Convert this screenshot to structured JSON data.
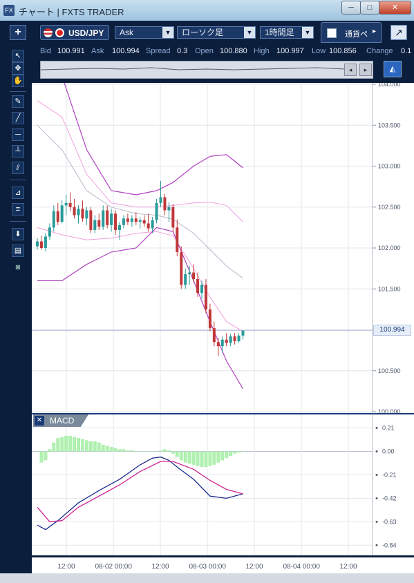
{
  "window": {
    "icon_text": "FX",
    "title": "チャート | FXTS TRADER",
    "controls": [
      "─",
      "□",
      "✕"
    ]
  },
  "toolbar": {
    "add_symbol": "+",
    "pair": "USD/JPY",
    "price_type": "Ask",
    "chart_type": "ローソク足",
    "timeframe": "1時間足",
    "currency_tab": "通貨ペ",
    "popout": "↗"
  },
  "quote": {
    "bid_label": "Bid",
    "bid": "100.991",
    "ask_label": "Ask",
    "ask": "100.994",
    "spread_label": "Spread",
    "spread": "0.3",
    "open_label": "Open",
    "open": "100.880",
    "high_label": "High",
    "high": "100.997",
    "low_label": "Low",
    "low": "100.856",
    "change_label": "Change",
    "change": "0.1"
  },
  "left_tools": [
    {
      "name": "cursor-arrow-icon",
      "glyph": "↖"
    },
    {
      "name": "crosshair-cursor-icon",
      "glyph": "✥"
    },
    {
      "name": "hand-pan-icon",
      "glyph": "✋"
    },
    {
      "name": "pencil-draw-icon",
      "glyph": "✎"
    },
    {
      "name": "trend-line-icon",
      "glyph": "╱"
    },
    {
      "name": "horizontal-line-icon",
      "glyph": "─"
    },
    {
      "name": "vertical-line-icon",
      "glyph": "┴"
    },
    {
      "name": "parallel-channel-icon",
      "glyph": "⫽"
    },
    {
      "name": "fan-tool-icon",
      "glyph": "⊿"
    },
    {
      "name": "fibonacci-icon",
      "glyph": "≡"
    },
    {
      "name": "download-icon",
      "glyph": "⬇"
    },
    {
      "name": "data-table-icon",
      "glyph": "▤"
    },
    {
      "name": "screenshot-camera-icon",
      "glyph": "◙"
    }
  ],
  "current_price_tag": "100.994",
  "macd_title": "MACD",
  "colors": {
    "bull_candle": "#2a9a9a",
    "bear_candle": "#c0383a",
    "bollinger_outer": "#b040c0",
    "bollinger_inner": "#f0a0e0",
    "moving_average": "#b8b8c8",
    "macd_line": "#1a2a8a",
    "signal_line": "#d02090",
    "histogram": "#b0f0b0"
  },
  "chart_data": [
    {
      "type": "candlestick",
      "title": "USD/JPY 1時間足",
      "y_ticks": [
        "104.000",
        "103.500",
        "103.000",
        "102.500",
        "102.000",
        "101.500",
        "101.000",
        "100.500",
        "100.000"
      ],
      "ylim": [
        100.0,
        104.0
      ],
      "x_ticks": [
        "12:00",
        "08-02 00:00",
        "12:00",
        "08-03 00:00",
        "12:00",
        "08-04 00:00",
        "12:00"
      ],
      "grid": true,
      "overlays": [
        "bollinger_upper",
        "bollinger_mid_band",
        "moving_average",
        "bollinger_lower"
      ],
      "candles": [
        {
          "o": 102.02,
          "h": 102.12,
          "l": 101.98,
          "c": 102.08
        },
        {
          "o": 102.08,
          "h": 102.15,
          "l": 101.98,
          "c": 102.0
        },
        {
          "o": 102.0,
          "h": 102.18,
          "l": 101.96,
          "c": 102.14
        },
        {
          "o": 102.14,
          "h": 102.3,
          "l": 102.1,
          "c": 102.25
        },
        {
          "o": 102.25,
          "h": 102.52,
          "l": 102.2,
          "c": 102.45
        },
        {
          "o": 102.45,
          "h": 102.55,
          "l": 102.28,
          "c": 102.32
        },
        {
          "o": 102.32,
          "h": 102.58,
          "l": 102.3,
          "c": 102.52
        },
        {
          "o": 102.52,
          "h": 102.65,
          "l": 102.4,
          "c": 102.55
        },
        {
          "o": 102.55,
          "h": 102.68,
          "l": 102.45,
          "c": 102.5
        },
        {
          "o": 102.5,
          "h": 102.6,
          "l": 102.36,
          "c": 102.4
        },
        {
          "o": 102.4,
          "h": 102.52,
          "l": 102.3,
          "c": 102.48
        },
        {
          "o": 102.48,
          "h": 102.58,
          "l": 102.32,
          "c": 102.36
        },
        {
          "o": 102.36,
          "h": 102.5,
          "l": 102.28,
          "c": 102.46
        },
        {
          "o": 102.46,
          "h": 102.5,
          "l": 102.18,
          "c": 102.22
        },
        {
          "o": 102.22,
          "h": 102.4,
          "l": 102.18,
          "c": 102.34
        },
        {
          "o": 102.34,
          "h": 102.42,
          "l": 102.22,
          "c": 102.26
        },
        {
          "o": 102.26,
          "h": 102.52,
          "l": 102.22,
          "c": 102.46
        },
        {
          "o": 102.46,
          "h": 102.52,
          "l": 102.24,
          "c": 102.28
        },
        {
          "o": 102.28,
          "h": 102.48,
          "l": 102.2,
          "c": 102.42
        },
        {
          "o": 102.42,
          "h": 102.46,
          "l": 102.16,
          "c": 102.22
        },
        {
          "o": 102.22,
          "h": 102.32,
          "l": 102.1,
          "c": 102.28
        },
        {
          "o": 102.28,
          "h": 102.4,
          "l": 102.24,
          "c": 102.36
        },
        {
          "o": 102.36,
          "h": 102.42,
          "l": 102.28,
          "c": 102.32
        },
        {
          "o": 102.32,
          "h": 102.4,
          "l": 102.26,
          "c": 102.36
        },
        {
          "o": 102.36,
          "h": 102.44,
          "l": 102.28,
          "c": 102.32
        },
        {
          "o": 102.32,
          "h": 102.38,
          "l": 102.24,
          "c": 102.34
        },
        {
          "o": 102.34,
          "h": 102.4,
          "l": 102.26,
          "c": 102.3
        },
        {
          "o": 102.3,
          "h": 102.42,
          "l": 102.2,
          "c": 102.24
        },
        {
          "o": 102.24,
          "h": 102.38,
          "l": 102.18,
          "c": 102.34
        },
        {
          "o": 102.34,
          "h": 102.6,
          "l": 102.3,
          "c": 102.55
        },
        {
          "o": 102.55,
          "h": 102.82,
          "l": 102.5,
          "c": 102.62
        },
        {
          "o": 102.62,
          "h": 102.66,
          "l": 102.4,
          "c": 102.46
        },
        {
          "o": 102.46,
          "h": 102.56,
          "l": 102.32,
          "c": 102.5
        },
        {
          "o": 102.5,
          "h": 102.54,
          "l": 102.2,
          "c": 102.25
        },
        {
          "o": 102.25,
          "h": 102.35,
          "l": 101.9,
          "c": 101.95
        },
        {
          "o": 101.95,
          "h": 102.02,
          "l": 101.5,
          "c": 101.55
        },
        {
          "o": 101.55,
          "h": 101.75,
          "l": 101.5,
          "c": 101.68
        },
        {
          "o": 101.68,
          "h": 101.78,
          "l": 101.55,
          "c": 101.7
        },
        {
          "o": 101.7,
          "h": 101.8,
          "l": 101.58,
          "c": 101.62
        },
        {
          "o": 101.62,
          "h": 101.7,
          "l": 101.4,
          "c": 101.45
        },
        {
          "o": 101.45,
          "h": 101.6,
          "l": 101.38,
          "c": 101.55
        },
        {
          "o": 101.55,
          "h": 101.62,
          "l": 101.2,
          "c": 101.25
        },
        {
          "o": 101.25,
          "h": 101.32,
          "l": 100.98,
          "c": 101.02
        },
        {
          "o": 101.02,
          "h": 101.1,
          "l": 100.8,
          "c": 100.85
        },
        {
          "o": 100.85,
          "h": 100.9,
          "l": 100.68,
          "c": 100.8
        },
        {
          "o": 100.8,
          "h": 100.92,
          "l": 100.72,
          "c": 100.88
        },
        {
          "o": 100.88,
          "h": 100.96,
          "l": 100.8,
          "c": 100.84
        },
        {
          "o": 100.84,
          "h": 100.95,
          "l": 100.8,
          "c": 100.92
        },
        {
          "o": 100.92,
          "h": 100.96,
          "l": 100.82,
          "c": 100.86
        },
        {
          "o": 100.86,
          "h": 100.96,
          "l": 100.84,
          "c": 100.93
        },
        {
          "o": 100.93,
          "h": 101.0,
          "l": 100.88,
          "c": 100.99
        }
      ],
      "bollinger_upper": [
        [
          0,
          104.3
        ],
        [
          6,
          104.1
        ],
        [
          12,
          103.2
        ],
        [
          18,
          102.7
        ],
        [
          24,
          102.65
        ],
        [
          29,
          102.7
        ],
        [
          33,
          102.8
        ],
        [
          38,
          103.0
        ],
        [
          42,
          103.12
        ],
        [
          46,
          103.14
        ],
        [
          50,
          102.98
        ]
      ],
      "bollinger_mid_band": [
        [
          0,
          103.8
        ],
        [
          6,
          103.6
        ],
        [
          12,
          102.9
        ],
        [
          18,
          102.55
        ],
        [
          24,
          102.5
        ],
        [
          29,
          102.5
        ],
        [
          33,
          102.52
        ],
        [
          38,
          102.55
        ],
        [
          42,
          102.56
        ],
        [
          46,
          102.52
        ],
        [
          50,
          102.32
        ]
      ],
      "moving_average": [
        [
          0,
          103.5
        ],
        [
          6,
          103.2
        ],
        [
          12,
          102.7
        ],
        [
          18,
          102.5
        ],
        [
          24,
          102.42
        ],
        [
          29,
          102.4
        ],
        [
          33,
          102.35
        ],
        [
          38,
          102.18
        ],
        [
          42,
          101.98
        ],
        [
          46,
          101.78
        ],
        [
          50,
          101.63
        ]
      ],
      "bollinger_inner_lower": [
        [
          0,
          102.25
        ],
        [
          6,
          102.16
        ],
        [
          12,
          102.1
        ],
        [
          18,
          102.12
        ],
        [
          24,
          102.18
        ],
        [
          29,
          102.2
        ],
        [
          33,
          102.15
        ],
        [
          38,
          101.75
        ],
        [
          42,
          101.4
        ],
        [
          46,
          101.1
        ],
        [
          50,
          100.98
        ]
      ],
      "bollinger_lower": [
        [
          0,
          101.6
        ],
        [
          6,
          101.6
        ],
        [
          12,
          101.8
        ],
        [
          18,
          101.95
        ],
        [
          24,
          102.0
        ],
        [
          29,
          102.25
        ],
        [
          33,
          102.2
        ],
        [
          38,
          101.6
        ],
        [
          42,
          101.1
        ],
        [
          46,
          100.62
        ],
        [
          50,
          100.28
        ]
      ]
    },
    {
      "type": "line",
      "title": "MACD",
      "y_ticks": [
        "0.21",
        "0.00",
        "-0.21",
        "-0.42",
        "-0.63",
        "-0.84"
      ],
      "ylim": [
        -0.9,
        0.3
      ],
      "x_ticks": [
        "12:00",
        "08-02 00:00",
        "12:00",
        "08-03 00:00",
        "12:00",
        "08-04 00:00",
        "12:00"
      ],
      "series": [
        {
          "values": [
            [
              0,
              -0.66
            ],
            [
              2,
              -0.7
            ],
            [
              5,
              -0.62
            ],
            [
              10,
              -0.46
            ],
            [
              15,
              -0.35
            ],
            [
              20,
              -0.25
            ],
            [
              25,
              -0.12
            ],
            [
              28,
              -0.06
            ],
            [
              30,
              -0.05
            ],
            [
              32,
              -0.08
            ],
            [
              34,
              -0.14
            ],
            [
              38,
              -0.25
            ],
            [
              42,
              -0.4
            ],
            [
              46,
              -0.42
            ],
            [
              50,
              -0.38
            ]
          ]
        },
        {
          "values": [
            [
              0,
              -0.5
            ],
            [
              3,
              -0.63
            ],
            [
              6,
              -0.62
            ],
            [
              10,
              -0.5
            ],
            [
              15,
              -0.4
            ],
            [
              20,
              -0.3
            ],
            [
              25,
              -0.18
            ],
            [
              30,
              -0.09
            ],
            [
              33,
              -0.09
            ],
            [
              38,
              -0.16
            ],
            [
              42,
              -0.26
            ],
            [
              46,
              -0.34
            ],
            [
              50,
              -0.38
            ]
          ]
        },
        {
          "values": [
            0.0,
            -0.1,
            -0.08,
            0.02,
            0.08,
            0.12,
            0.13,
            0.14,
            0.14,
            0.13,
            0.12,
            0.11,
            0.1,
            0.09,
            0.09,
            0.08,
            0.06,
            0.05,
            0.04,
            0.03,
            0.02,
            0.02,
            0.01,
            0.01,
            0.0,
            0.0,
            0.0,
            0.0,
            0.0,
            0.0,
            0.01,
            0.02,
            0.01,
            -0.02,
            -0.05,
            -0.08,
            -0.1,
            -0.11,
            -0.12,
            -0.13,
            -0.14,
            -0.14,
            -0.13,
            -0.12,
            -0.1,
            -0.08,
            -0.06,
            -0.04,
            -0.02,
            -0.01,
            0.0
          ]
        }
      ]
    }
  ]
}
